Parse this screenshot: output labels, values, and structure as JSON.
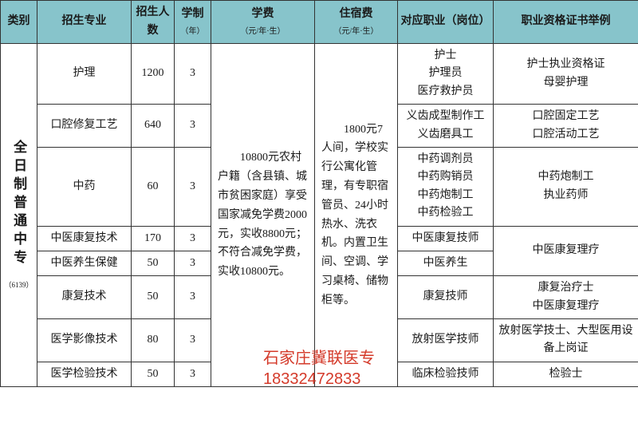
{
  "headers": {
    "c0": "类别",
    "c1": "招生专业",
    "c2": "招生人数",
    "c3": "学制",
    "c3sub": "（年）",
    "c4": "学费",
    "c4sub": "（元/年·生）",
    "c5": "住宿费",
    "c5sub": "（元/年·生）",
    "c6": "对应职业（岗位）",
    "c7": "职业资格证书举例"
  },
  "category": "全日制普通中专",
  "categoryCode": "（6139）",
  "tuitionText": "10800元农村户籍（含县镇、城市贫困家庭）享受国家减免学费2000元，实收8800元；不符合减免学费，实收10800元。",
  "dormText": "1800元7人间，学校实行公寓化管理，有专职宿管员、24小时热水、洗衣机。内置卫生间、空调、学习桌椅、储物柜等。",
  "rows": [
    {
      "major": "护理",
      "count": "1200",
      "years": "3",
      "job": "护士\n护理员\n医疗救护员",
      "cert": "护士执业资格证\n母婴护理"
    },
    {
      "major": "口腔修复工艺",
      "count": "640",
      "years": "3",
      "job": "义齿成型制作工\n义齿磨具工",
      "cert": "口腔固定工艺\n口腔活动工艺"
    },
    {
      "major": "中药",
      "count": "60",
      "years": "3",
      "job": "中药调剂员\n中药购销员\n中药炮制工\n中药检验工",
      "cert": "中药炮制工\n执业药师"
    },
    {
      "major": "中医康复技术",
      "count": "170",
      "years": "3",
      "job": "中医康复技师",
      "cert": "中医康复理疗"
    },
    {
      "major": "中医养生保健",
      "count": "50",
      "years": "3",
      "job": "中医养生",
      "cert": ""
    },
    {
      "major": "康复技术",
      "count": "50",
      "years": "3",
      "job": "康复技师",
      "cert": "康复治疗士\n中医康复理疗"
    },
    {
      "major": "医学影像技术",
      "count": "80",
      "years": "3",
      "job": "放射医学技师",
      "cert": "放射医学技士、大型医用设备上岗证"
    },
    {
      "major": "医学检验技术",
      "count": "50",
      "years": "3",
      "job": "临床检验技师",
      "cert": "检验士"
    }
  ],
  "watermark": {
    "line1": "石家庄冀联医专",
    "line2": "18332472833"
  },
  "style": {
    "headerBg": "#87c4cb",
    "borderColor": "#333333",
    "textColor": "#1a1a1a",
    "watermarkColor": "#d43a2a",
    "bodyFontSize": 14,
    "headerFontSize": 14
  }
}
